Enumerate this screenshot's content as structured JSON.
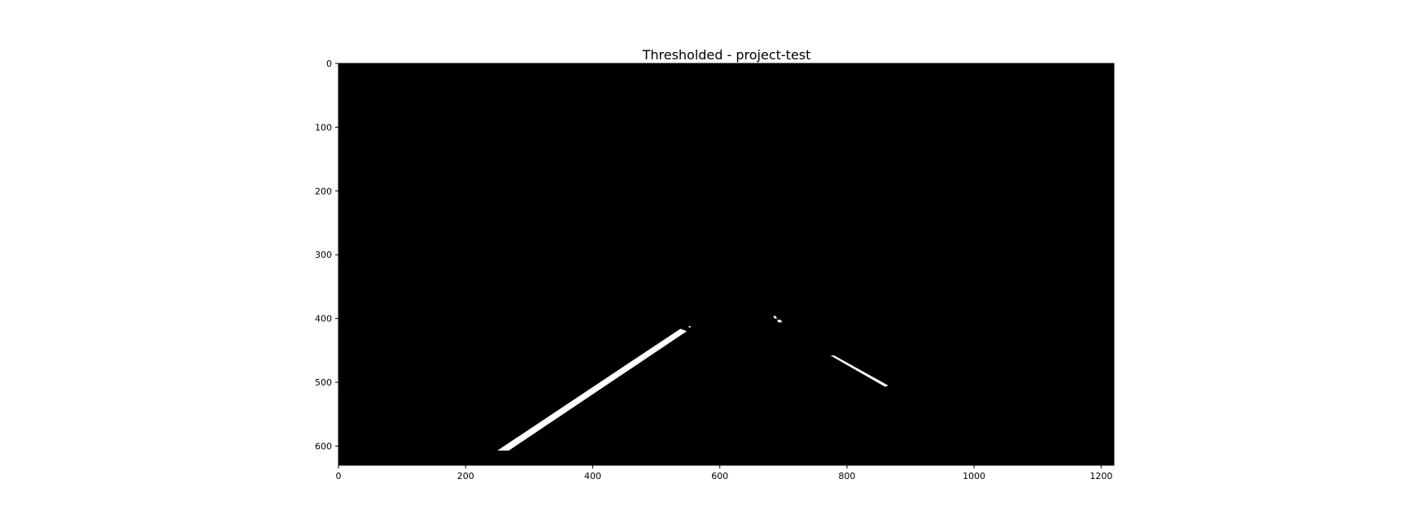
{
  "chart_data": {
    "type": "heatmap",
    "title": "Thresholded - project-test",
    "xlabel": "",
    "ylabel": "",
    "xlim": [
      0,
      1220
    ],
    "ylim": [
      630,
      0
    ],
    "x_ticks": [
      0,
      200,
      400,
      600,
      800,
      1000,
      1200
    ],
    "y_ticks": [
      0,
      100,
      200,
      300,
      400,
      500,
      600
    ],
    "grid": false,
    "background_color": "#000000",
    "foreground_color": "#ffffff",
    "binary_regions": [
      {
        "name": "left-lane-line",
        "polygon": [
          [
            250,
            607
          ],
          [
            268,
            607
          ],
          [
            548,
            420
          ],
          [
            538,
            416
          ]
        ]
      },
      {
        "name": "right-lane-line",
        "polygon": [
          [
            774,
            458
          ],
          [
            780,
            458
          ],
          [
            865,
            505
          ],
          [
            860,
            507
          ]
        ]
      },
      {
        "name": "speck-1",
        "polygon": [
          [
            684,
            396
          ],
          [
            688,
            396
          ],
          [
            690,
            400
          ],
          [
            686,
            400
          ]
        ]
      },
      {
        "name": "speck-2",
        "polygon": [
          [
            690,
            402
          ],
          [
            696,
            402
          ],
          [
            698,
            406
          ],
          [
            692,
            406
          ]
        ]
      },
      {
        "name": "speck-3",
        "polygon": [
          [
            551,
            412
          ],
          [
            554,
            412
          ],
          [
            554,
            414
          ],
          [
            551,
            414
          ]
        ]
      }
    ]
  }
}
